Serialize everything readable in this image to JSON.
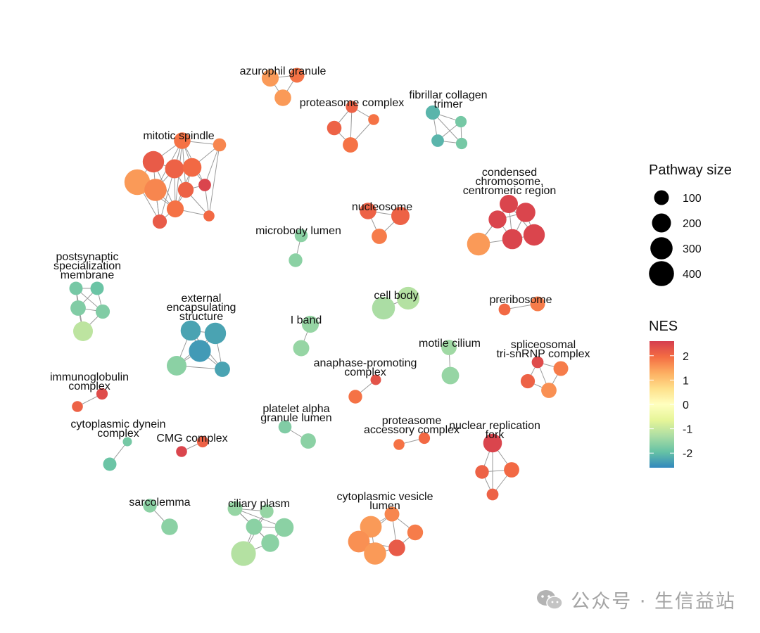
{
  "chart_data": {
    "type": "network",
    "legend": {
      "size_title": "Pathway size",
      "size_values": [
        100,
        200,
        300,
        400
      ],
      "color_title": "NES",
      "color_ticks": [
        2,
        1,
        0,
        -1,
        -2
      ],
      "color_range": [
        -2.6,
        2.6
      ],
      "colors": [
        "#d53e4f",
        "#f46d43",
        "#fdae61",
        "#fee08b",
        "#ffffbf",
        "#e6f598",
        "#abdda4",
        "#66c2a5",
        "#3288bd"
      ]
    },
    "clusters": [
      {
        "id": "azurophil",
        "label_lines": [
          "azurophil granule"
        ],
        "nodes": [
          {
            "size": 150,
            "nes": 1.5
          },
          {
            "size": 100,
            "nes": 1.9
          },
          {
            "size": 140,
            "nes": 1.5
          }
        ],
        "edges": [
          [
            0,
            1
          ],
          [
            0,
            2
          ],
          [
            1,
            2
          ]
        ]
      },
      {
        "id": "proteasome",
        "label_lines": [
          "proteasome complex"
        ],
        "nodes": [
          {
            "size": 55,
            "nes": 2.1
          },
          {
            "size": 95,
            "nes": 2.1
          },
          {
            "size": 110,
            "nes": 1.9
          },
          {
            "size": 40,
            "nes": 1.9
          }
        ],
        "edges": [
          [
            0,
            1
          ],
          [
            0,
            2
          ],
          [
            0,
            3
          ],
          [
            1,
            2
          ],
          [
            2,
            3
          ]
        ]
      },
      {
        "id": "fibrillar",
        "label_lines": [
          "fibrillar collagen",
          "trimer"
        ],
        "nodes": [
          {
            "size": 90,
            "nes": -2.1
          },
          {
            "size": 45,
            "nes": -1.8
          },
          {
            "size": 60,
            "nes": -2.1
          },
          {
            "size": 45,
            "nes": -1.8
          }
        ],
        "edges": [
          [
            0,
            1
          ],
          [
            0,
            2
          ],
          [
            0,
            3
          ],
          [
            1,
            2
          ],
          [
            1,
            3
          ],
          [
            2,
            3
          ]
        ]
      },
      {
        "id": "mitotic",
        "label_lines": [
          "mitotic spindle"
        ],
        "nodes": [
          {
            "size": 140,
            "nes": 1.9
          },
          {
            "size": 70,
            "nes": 1.7
          },
          {
            "size": 270,
            "nes": 2.2
          },
          {
            "size": 200,
            "nes": 2.1
          },
          {
            "size": 190,
            "nes": 2.0
          },
          {
            "size": 420,
            "nes": 1.5
          },
          {
            "size": 300,
            "nes": 1.7
          },
          {
            "size": 120,
            "nes": 2.1
          },
          {
            "size": 60,
            "nes": 2.5
          },
          {
            "size": 150,
            "nes": 1.9
          },
          {
            "size": 90,
            "nes": 2.2
          },
          {
            "size": 40,
            "nes": 2.0
          }
        ],
        "edges": [
          [
            0,
            1
          ],
          [
            0,
            2
          ],
          [
            0,
            3
          ],
          [
            0,
            4
          ],
          [
            0,
            6
          ],
          [
            0,
            7
          ],
          [
            0,
            8
          ],
          [
            0,
            9
          ],
          [
            0,
            10
          ],
          [
            1,
            4
          ],
          [
            1,
            8
          ],
          [
            1,
            11
          ],
          [
            2,
            3
          ],
          [
            2,
            5
          ],
          [
            2,
            6
          ],
          [
            2,
            9
          ],
          [
            3,
            4
          ],
          [
            3,
            6
          ],
          [
            3,
            7
          ],
          [
            3,
            9
          ],
          [
            4,
            7
          ],
          [
            4,
            8
          ],
          [
            4,
            9
          ],
          [
            5,
            6
          ],
          [
            5,
            9
          ],
          [
            5,
            10
          ],
          [
            6,
            9
          ],
          [
            6,
            10
          ],
          [
            7,
            8
          ],
          [
            7,
            9
          ],
          [
            7,
            11
          ],
          [
            8,
            11
          ],
          [
            9,
            10
          ],
          [
            9,
            11
          ],
          [
            10,
            6
          ]
        ]
      },
      {
        "id": "nucleosome",
        "label_lines": [
          "nucleosome"
        ],
        "nodes": [
          {
            "size": 140,
            "nes": 2.1
          },
          {
            "size": 180,
            "nes": 2.1
          },
          {
            "size": 110,
            "nes": 1.8
          }
        ],
        "edges": [
          [
            0,
            1
          ],
          [
            0,
            2
          ],
          [
            1,
            2
          ]
        ]
      },
      {
        "id": "condensed",
        "label_lines": [
          "condensed",
          "chromosome,",
          "centromeric region"
        ],
        "nodes": [
          {
            "size": 170,
            "nes": 2.5
          },
          {
            "size": 180,
            "nes": 2.5
          },
          {
            "size": 210,
            "nes": 2.5
          },
          {
            "size": 320,
            "nes": 1.5
          },
          {
            "size": 230,
            "nes": 2.5
          },
          {
            "size": 270,
            "nes": 2.5
          }
        ],
        "edges": [
          [
            0,
            1
          ],
          [
            0,
            2
          ],
          [
            0,
            3
          ],
          [
            0,
            4
          ],
          [
            1,
            2
          ],
          [
            1,
            3
          ],
          [
            1,
            4
          ],
          [
            1,
            5
          ],
          [
            2,
            4
          ],
          [
            2,
            5
          ],
          [
            3,
            4
          ],
          [
            4,
            5
          ]
        ]
      },
      {
        "id": "microbody",
        "label_lines": [
          "microbody lumen"
        ],
        "nodes": [
          {
            "size": 70,
            "nes": -1.6
          },
          {
            "size": 80,
            "nes": -1.6
          }
        ],
        "edges": [
          [
            0,
            1
          ]
        ]
      },
      {
        "id": "postsynaptic",
        "label_lines": [
          "postsynaptic",
          "specialization",
          "membrane"
        ],
        "nodes": [
          {
            "size": 75,
            "nes": -1.8
          },
          {
            "size": 75,
            "nes": -1.9
          },
          {
            "size": 110,
            "nes": -1.7
          },
          {
            "size": 90,
            "nes": -1.7
          },
          {
            "size": 220,
            "nes": -1.1
          }
        ],
        "edges": [
          [
            0,
            1
          ],
          [
            0,
            2
          ],
          [
            0,
            3
          ],
          [
            0,
            4
          ],
          [
            1,
            2
          ],
          [
            1,
            3
          ],
          [
            2,
            3
          ],
          [
            2,
            4
          ],
          [
            3,
            4
          ]
        ]
      },
      {
        "id": "cellbody",
        "label_lines": [
          "cell body"
        ],
        "nodes": [
          {
            "size": 320,
            "nes": -1.3
          },
          {
            "size": 310,
            "nes": -1.2
          }
        ],
        "edges": [
          [
            0,
            1
          ]
        ]
      },
      {
        "id": "preribosome",
        "label_lines": [
          "preribosome"
        ],
        "nodes": [
          {
            "size": 50,
            "nes": 2.0
          },
          {
            "size": 100,
            "nes": 1.8
          }
        ],
        "edges": [
          [
            0,
            1
          ]
        ]
      },
      {
        "id": "external",
        "label_lines": [
          "external",
          "encapsulating",
          "structure"
        ],
        "nodes": [
          {
            "size": 230,
            "nes": -2.3
          },
          {
            "size": 270,
            "nes": -2.3
          },
          {
            "size": 290,
            "nes": -2.4
          },
          {
            "size": 220,
            "nes": -1.6
          },
          {
            "size": 110,
            "nes": -2.3
          }
        ],
        "edges": [
          [
            0,
            1
          ],
          [
            0,
            2
          ],
          [
            0,
            3
          ],
          [
            0,
            4
          ],
          [
            1,
            2
          ],
          [
            1,
            3
          ],
          [
            1,
            4
          ],
          [
            2,
            3
          ],
          [
            2,
            4
          ],
          [
            3,
            4
          ]
        ]
      },
      {
        "id": "iband",
        "label_lines": [
          "I band"
        ],
        "nodes": [
          {
            "size": 150,
            "nes": -1.5
          },
          {
            "size": 130,
            "nes": -1.5
          }
        ],
        "edges": [
          [
            0,
            1
          ]
        ]
      },
      {
        "id": "motile",
        "label_lines": [
          "motile cilium"
        ],
        "nodes": [
          {
            "size": 110,
            "nes": -1.4
          },
          {
            "size": 160,
            "nes": -1.5
          }
        ],
        "edges": [
          [
            0,
            1
          ]
        ]
      },
      {
        "id": "spliceosomal",
        "label_lines": [
          "spliceosomal",
          "tri-snRNP complex"
        ],
        "nodes": [
          {
            "size": 50,
            "nes": 2.4
          },
          {
            "size": 100,
            "nes": 1.8
          },
          {
            "size": 90,
            "nes": 2.1
          },
          {
            "size": 110,
            "nes": 1.6
          }
        ],
        "edges": [
          [
            0,
            1
          ],
          [
            0,
            2
          ],
          [
            0,
            3
          ],
          [
            1,
            3
          ],
          [
            2,
            3
          ]
        ]
      },
      {
        "id": "apc",
        "label_lines": [
          "anaphase-promoting",
          "complex"
        ],
        "nodes": [
          {
            "size": 35,
            "nes": 2.3
          },
          {
            "size": 80,
            "nes": 1.9
          }
        ],
        "edges": [
          [
            0,
            1
          ]
        ]
      },
      {
        "id": "immunoglobulin",
        "label_lines": [
          "immunoglobulin",
          "complex"
        ],
        "nodes": [
          {
            "size": 45,
            "nes": 2.4
          },
          {
            "size": 40,
            "nes": 2.1
          }
        ],
        "edges": [
          [
            0,
            1
          ]
        ]
      },
      {
        "id": "platelet",
        "label_lines": [
          "platelet alpha",
          "granule lumen"
        ],
        "nodes": [
          {
            "size": 70,
            "nes": -1.7
          },
          {
            "size": 110,
            "nes": -1.6
          }
        ],
        "edges": [
          [
            0,
            1
          ]
        ]
      },
      {
        "id": "proteasome_acc",
        "label_lines": [
          "proteasome",
          "accessory complex"
        ],
        "nodes": [
          {
            "size": 45,
            "nes": 2.0
          },
          {
            "size": 40,
            "nes": 1.9
          }
        ],
        "edges": [
          [
            0,
            1
          ]
        ]
      },
      {
        "id": "nuclear_rep",
        "label_lines": [
          "nuclear replication",
          "fork"
        ],
        "nodes": [
          {
            "size": 190,
            "nes": 2.5
          },
          {
            "size": 110,
            "nes": 2.0
          },
          {
            "size": 80,
            "nes": 2.1
          },
          {
            "size": 50,
            "nes": 2.1
          }
        ],
        "edges": [
          [
            0,
            1
          ],
          [
            0,
            2
          ],
          [
            0,
            3
          ],
          [
            1,
            2
          ],
          [
            1,
            3
          ],
          [
            2,
            3
          ]
        ]
      },
      {
        "id": "dynein",
        "label_lines": [
          "cytoplasmic dynein",
          "complex"
        ],
        "nodes": [
          {
            "size": 20,
            "nes": -1.8
          },
          {
            "size": 75,
            "nes": -1.9
          }
        ],
        "edges": [
          [
            0,
            1
          ]
        ]
      },
      {
        "id": "cmg",
        "label_lines": [
          "CMG complex"
        ],
        "nodes": [
          {
            "size": 45,
            "nes": 2.1
          },
          {
            "size": 40,
            "nes": 2.5
          }
        ],
        "edges": [
          [
            0,
            1
          ]
        ]
      },
      {
        "id": "sarcolemma",
        "label_lines": [
          "sarcolemma"
        ],
        "nodes": [
          {
            "size": 80,
            "nes": -1.6
          },
          {
            "size": 140,
            "nes": -1.6
          }
        ],
        "edges": [
          [
            0,
            1
          ]
        ]
      },
      {
        "id": "ciliary",
        "label_lines": [
          "ciliary plasm"
        ],
        "nodes": [
          {
            "size": 80,
            "nes": -1.5
          },
          {
            "size": 100,
            "nes": -1.5
          },
          {
            "size": 130,
            "nes": -1.6
          },
          {
            "size": 190,
            "nes": -1.6
          },
          {
            "size": 170,
            "nes": -1.6
          },
          {
            "size": 390,
            "nes": -1.2
          }
        ],
        "edges": [
          [
            0,
            1
          ],
          [
            0,
            2
          ],
          [
            0,
            5
          ],
          [
            1,
            2
          ],
          [
            1,
            3
          ],
          [
            1,
            4
          ],
          [
            2,
            3
          ],
          [
            2,
            4
          ],
          [
            2,
            5
          ],
          [
            3,
            4
          ],
          [
            4,
            5
          ]
        ]
      },
      {
        "id": "cyto_vesicle",
        "label_lines": [
          "cytoplasmic vesicle",
          "lumen"
        ],
        "nodes": [
          {
            "size": 100,
            "nes": 1.7
          },
          {
            "size": 280,
            "nes": 1.5
          },
          {
            "size": 120,
            "nes": 1.8
          },
          {
            "size": 280,
            "nes": 1.6
          },
          {
            "size": 140,
            "nes": 2.2
          },
          {
            "size": 300,
            "nes": 1.5
          }
        ],
        "edges": [
          [
            0,
            1
          ],
          [
            0,
            2
          ],
          [
            0,
            3
          ],
          [
            0,
            4
          ],
          [
            1,
            3
          ],
          [
            1,
            5
          ],
          [
            2,
            4
          ],
          [
            3,
            4
          ],
          [
            3,
            5
          ],
          [
            4,
            5
          ]
        ]
      }
    ]
  },
  "watermark": {
    "text": "公众号 · 生信益站",
    "icon": "wechat-icon"
  }
}
